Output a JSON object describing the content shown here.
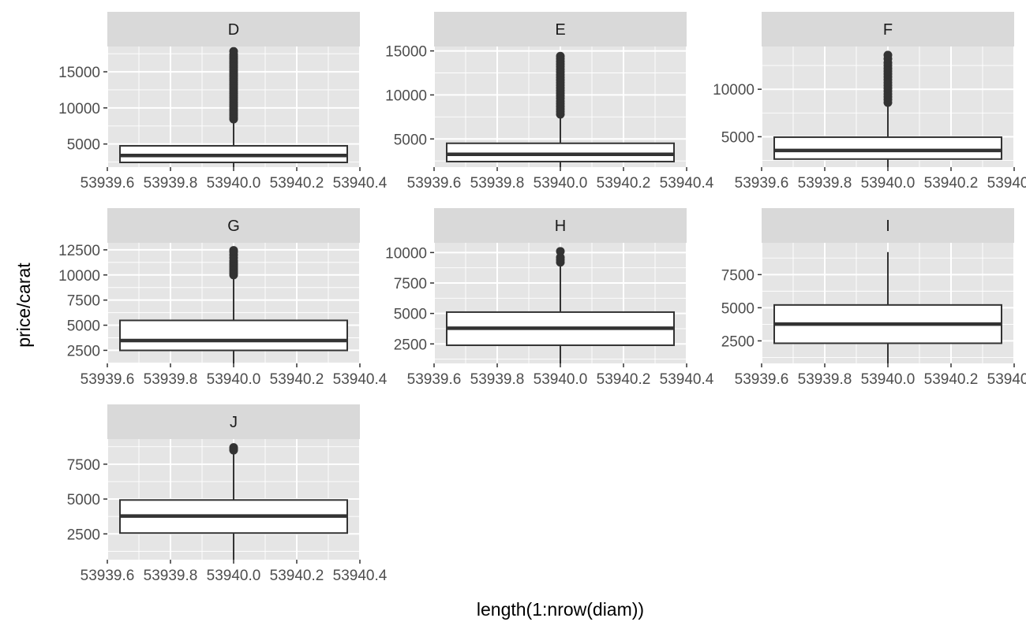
{
  "chart_data": {
    "type": "boxplot",
    "layout": "facet_wrap",
    "ncol": 3,
    "xlabel": "length(1:nrow(diam))",
    "ylabel": "price/carat",
    "x_value": 53940,
    "xlim": [
      53939.6,
      53940.4
    ],
    "x_ticks": [
      53939.6,
      53939.8,
      53940.0,
      53940.2,
      53940.4
    ],
    "x_tick_labels": [
      "53939.6",
      "53939.8",
      "53940.0",
      "53940.2",
      "53940.4"
    ],
    "grid": true,
    "colors": {
      "panel_background": "#e5e5e5",
      "strip_background": "#d9d9d9",
      "grid": "#ffffff",
      "box_fill": "#ffffff",
      "box_line": "#333333"
    },
    "facets": [
      {
        "label": "D",
        "ylim": [
          1800,
          18500
        ],
        "yticks": [
          5000,
          10000,
          15000
        ],
        "ytick_labels": [
          "5000",
          "10000",
          "15000"
        ],
        "box": {
          "lower_whisker": 1128,
          "q1": 2455,
          "median": 3411,
          "q3": 4749,
          "upper_whisker": 8200
        },
        "outliers": [
          8450,
          8700,
          9000,
          9300,
          9600,
          9900,
          10200,
          10500,
          10800,
          11100,
          11400,
          11700,
          12000,
          12300,
          12600,
          12900,
          13200,
          13500,
          13800,
          14100,
          14400,
          14700,
          15000,
          15300,
          15600,
          15900,
          16200,
          16500,
          16800,
          17100,
          17400,
          17828
        ]
      },
      {
        "label": "E",
        "ylim": [
          1800,
          15500
        ],
        "yticks": [
          5000,
          10000,
          15000
        ],
        "ytick_labels": [
          "5000",
          "10000",
          "15000"
        ],
        "box": {
          "lower_whisker": 1078,
          "q1": 2430,
          "median": 3254,
          "q3": 4508,
          "upper_whisker": 7600
        },
        "outliers": [
          7800,
          8100,
          8400,
          8700,
          9000,
          9300,
          9600,
          9900,
          10200,
          10500,
          10800,
          11100,
          11400,
          11700,
          12000,
          12300,
          12600,
          12900,
          13200,
          13500,
          13800,
          14100,
          14400
        ]
      },
      {
        "label": "F",
        "ylim": [
          1800,
          14500
        ],
        "yticks": [
          5000,
          10000
        ],
        "ytick_labels": [
          "5000",
          "10000"
        ],
        "box": {
          "lower_whisker": 1200,
          "q1": 2650,
          "median": 3550,
          "q3": 4950,
          "upper_whisker": 8400
        },
        "outliers": [
          8600,
          8900,
          9200,
          9500,
          9800,
          10100,
          10400,
          10700,
          11000,
          11300,
          11600,
          11900,
          12200,
          12500,
          12800,
          13200,
          13600
        ]
      },
      {
        "label": "G",
        "ylim": [
          1200,
          13200
        ],
        "yticks": [
          2500,
          5000,
          7500,
          10000,
          12500
        ],
        "ytick_labels": [
          "2500",
          "5000",
          "7500",
          "10000",
          "12500"
        ],
        "box": {
          "lower_whisker": 1000,
          "q1": 2495,
          "median": 3470,
          "q3": 5479,
          "upper_whisker": 9900
        },
        "outliers": [
          10000,
          10200,
          10400,
          10600,
          10800,
          11000,
          11200,
          11400,
          11700,
          12000,
          12300,
          12450
        ]
      },
      {
        "label": "H",
        "ylim": [
          900,
          10800
        ],
        "yticks": [
          2500,
          5000,
          7500,
          10000
        ],
        "ytick_labels": [
          "2500",
          "5000",
          "7500",
          "10000"
        ],
        "box": {
          "lower_whisker": 800,
          "q1": 2390,
          "median": 3790,
          "q3": 5110,
          "upper_whisker": 9000
        },
        "outliers": [
          9200,
          9400,
          9600,
          10100
        ]
      },
      {
        "label": "I",
        "ylim": [
          800,
          9900
        ],
        "yticks": [
          2500,
          5000,
          7500
        ],
        "ytick_labels": [
          "2500",
          "5000",
          "7500"
        ],
        "box": {
          "lower_whisker": 700,
          "q1": 2320,
          "median": 3770,
          "q3": 5210,
          "upper_whisker": 9200
        },
        "outliers": []
      },
      {
        "label": "J",
        "ylim": [
          650,
          9300
        ],
        "yticks": [
          2500,
          5000,
          7500
        ],
        "ytick_labels": [
          "2500",
          "5000",
          "7500"
        ],
        "box": {
          "lower_whisker": 600,
          "q1": 2560,
          "median": 3780,
          "q3": 4930,
          "upper_whisker": 8300
        },
        "outliers": [
          8500,
          8600,
          8700
        ]
      }
    ]
  }
}
